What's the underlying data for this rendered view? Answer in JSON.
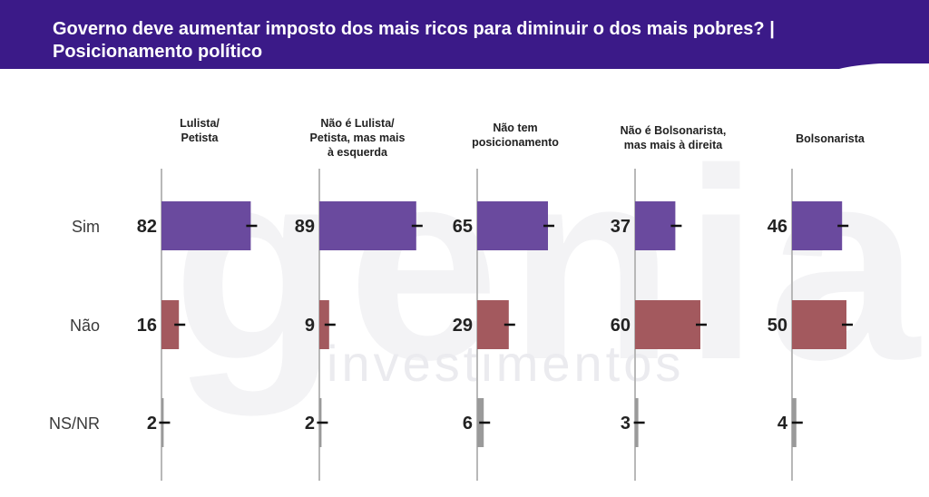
{
  "header": {
    "title": "Governo deve aumentar imposto dos mais ricos para diminuir o dos mais pobres? | Posicionamento político",
    "background_color": "#3b1a88"
  },
  "watermark": {
    "brand": "genial",
    "subtitle": "investimentos"
  },
  "chart_data": {
    "type": "bar",
    "orientation": "horizontal",
    "categories": [
      "Sim",
      "Não",
      "NS/NR"
    ],
    "panels": [
      {
        "title_lines": [
          "Lulista/",
          "Petista"
        ],
        "values": [
          82,
          16,
          2
        ]
      },
      {
        "title_lines": [
          "Não é Lulista/",
          "Petista, mas mais",
          "à esquerda"
        ],
        "values": [
          89,
          9,
          2
        ]
      },
      {
        "title_lines": [
          "Não tem",
          "posicionamento"
        ],
        "values": [
          65,
          29,
          6
        ]
      },
      {
        "title_lines": [
          "Não é Bolsonarista,",
          "mas mais à direita"
        ],
        "values": [
          37,
          60,
          3
        ]
      },
      {
        "title_lines": [
          "Bolsonarista"
        ],
        "values": [
          46,
          50,
          4
        ]
      }
    ],
    "colors": {
      "Sim": "#6a4a9e",
      "Não": "#a3595e",
      "NS/NR": "#9a9a9a"
    },
    "error_bars": true,
    "xlim": [
      0,
      100
    ],
    "grid": false,
    "legend": "none"
  }
}
